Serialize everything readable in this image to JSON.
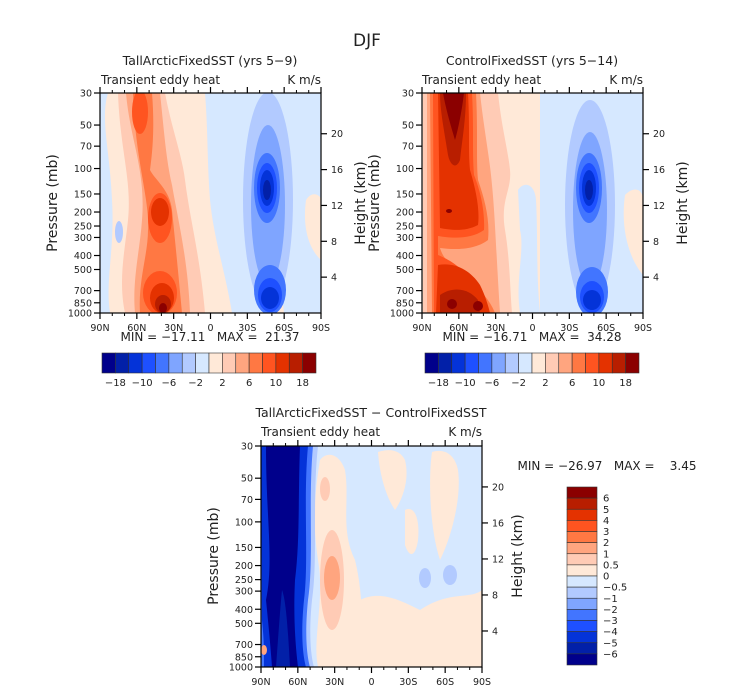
{
  "figure": {
    "title": "DJF"
  },
  "colors": {
    "diverging16": [
      "#00008b",
      "#0220a8",
      "#0433d8",
      "#1e50ff",
      "#4275ff",
      "#7fa5ff",
      "#b2caff",
      "#d6e8ff",
      "#ffe9d8",
      "#ffcbb5",
      "#ffa57f",
      "#ff7843",
      "#ff5420",
      "#e43200",
      "#b81e00",
      "#8b0000"
    ]
  },
  "chart_data": [
    {
      "type": "heatmap",
      "id": "panel-tallarctic",
      "title": "TallArcticFixedSST (yrs 5−9)",
      "left_subtitle": "Transient eddy heat",
      "right_subtitle": "K m/s",
      "xlabel": "",
      "ylabel": "Pressure (mb)",
      "ylabel_right": "Height (km)",
      "x_ticks": [
        "90N",
        "60N",
        "30N",
        "0",
        "30S",
        "60S",
        "90S"
      ],
      "x_range": [
        90,
        -90
      ],
      "y_ticks": [
        "30",
        "50",
        "70",
        "100",
        "150",
        "200",
        "250",
        "300",
        "400",
        "500",
        "700",
        "850",
        "1000"
      ],
      "y_range_mb": [
        1000,
        30
      ],
      "y_right_ticks": [
        "20",
        "16",
        "12",
        "8",
        "4"
      ],
      "min_max_label": "MIN = −17.11   MAX =  21.37",
      "min": -17.11,
      "max": 21.37,
      "colorbar": {
        "orientation": "horizontal",
        "levels": [
          "−18",
          "−10",
          "−6",
          "−2",
          "2",
          "6",
          "10",
          "18"
        ]
      },
      "features": [
        {
          "name": "nh-upper-max",
          "lat": 62,
          "p": 40,
          "value": 10
        },
        {
          "name": "nh-mid-max",
          "lat": 45,
          "p": 220,
          "value": 12
        },
        {
          "name": "nh-surface-max",
          "lat": 45,
          "p": 950,
          "value": 21
        },
        {
          "name": "sh-upper-min",
          "lat": -47,
          "p": 180,
          "value": -17
        },
        {
          "name": "sh-surface-min",
          "lat": -50,
          "p": 900,
          "value": -14
        }
      ]
    },
    {
      "type": "heatmap",
      "id": "panel-control",
      "title": "ControlFixedSST (yrs 5−14)",
      "left_subtitle": "Transient eddy heat",
      "right_subtitle": "K m/s",
      "xlabel": "",
      "ylabel": "Pressure (mb)",
      "ylabel_right": "Height (km)",
      "x_ticks": [
        "90N",
        "60N",
        "30N",
        "0",
        "30S",
        "60S",
        "90S"
      ],
      "x_range": [
        90,
        -90
      ],
      "y_ticks": [
        "30",
        "50",
        "70",
        "100",
        "150",
        "200",
        "250",
        "300",
        "400",
        "500",
        "700",
        "850",
        "1000"
      ],
      "y_range_mb": [
        1000,
        30
      ],
      "y_right_ticks": [
        "20",
        "16",
        "12",
        "8",
        "4"
      ],
      "min_max_label": "MIN = −16.71   MAX =  34.28",
      "min": -16.71,
      "max": 34.28,
      "colorbar": {
        "orientation": "horizontal",
        "levels": [
          "−18",
          "−10",
          "−6",
          "−2",
          "2",
          "6",
          "10",
          "18"
        ]
      },
      "features": [
        {
          "name": "nh-upper-max",
          "lat": 65,
          "p": 40,
          "value": 34
        },
        {
          "name": "nh-mid-max",
          "lat": 60,
          "p": 200,
          "value": 14
        },
        {
          "name": "nh-surface-max",
          "lat": 55,
          "p": 950,
          "value": 20
        },
        {
          "name": "sh-upper-min",
          "lat": -47,
          "p": 180,
          "value": -16
        },
        {
          "name": "sh-surface-min",
          "lat": -50,
          "p": 900,
          "value": -14
        }
      ]
    },
    {
      "type": "heatmap",
      "id": "panel-difference",
      "title": "TallArcticFixedSST − ControlFixedSST",
      "left_subtitle": "Transient eddy heat",
      "right_subtitle": "K m/s",
      "xlabel": "",
      "ylabel": "Pressure (mb)",
      "ylabel_right": "Height (km)",
      "x_ticks": [
        "90N",
        "60N",
        "30N",
        "0",
        "30S",
        "60S",
        "90S"
      ],
      "x_range": [
        90,
        -90
      ],
      "y_ticks": [
        "30",
        "50",
        "70",
        "100",
        "150",
        "200",
        "250",
        "300",
        "400",
        "500",
        "700",
        "850",
        "1000"
      ],
      "y_range_mb": [
        1000,
        30
      ],
      "y_right_ticks": [
        "20",
        "16",
        "12",
        "8",
        "4"
      ],
      "min_max_label": "MIN = −26.97   MAX =    3.45",
      "min": -26.97,
      "max": 3.45,
      "colorbar": {
        "orientation": "vertical",
        "levels": [
          "6",
          "5",
          "4",
          "3",
          "2",
          "1",
          "0.5",
          "0",
          "−0.5",
          "−1",
          "−2",
          "−3",
          "−4",
          "−5",
          "−6"
        ]
      },
      "features": [
        {
          "name": "arctic-strong-min",
          "lat": 75,
          "p": 300,
          "value": -27
        },
        {
          "name": "subtropical-max",
          "lat": 33,
          "p": 250,
          "value": 2
        }
      ]
    }
  ]
}
